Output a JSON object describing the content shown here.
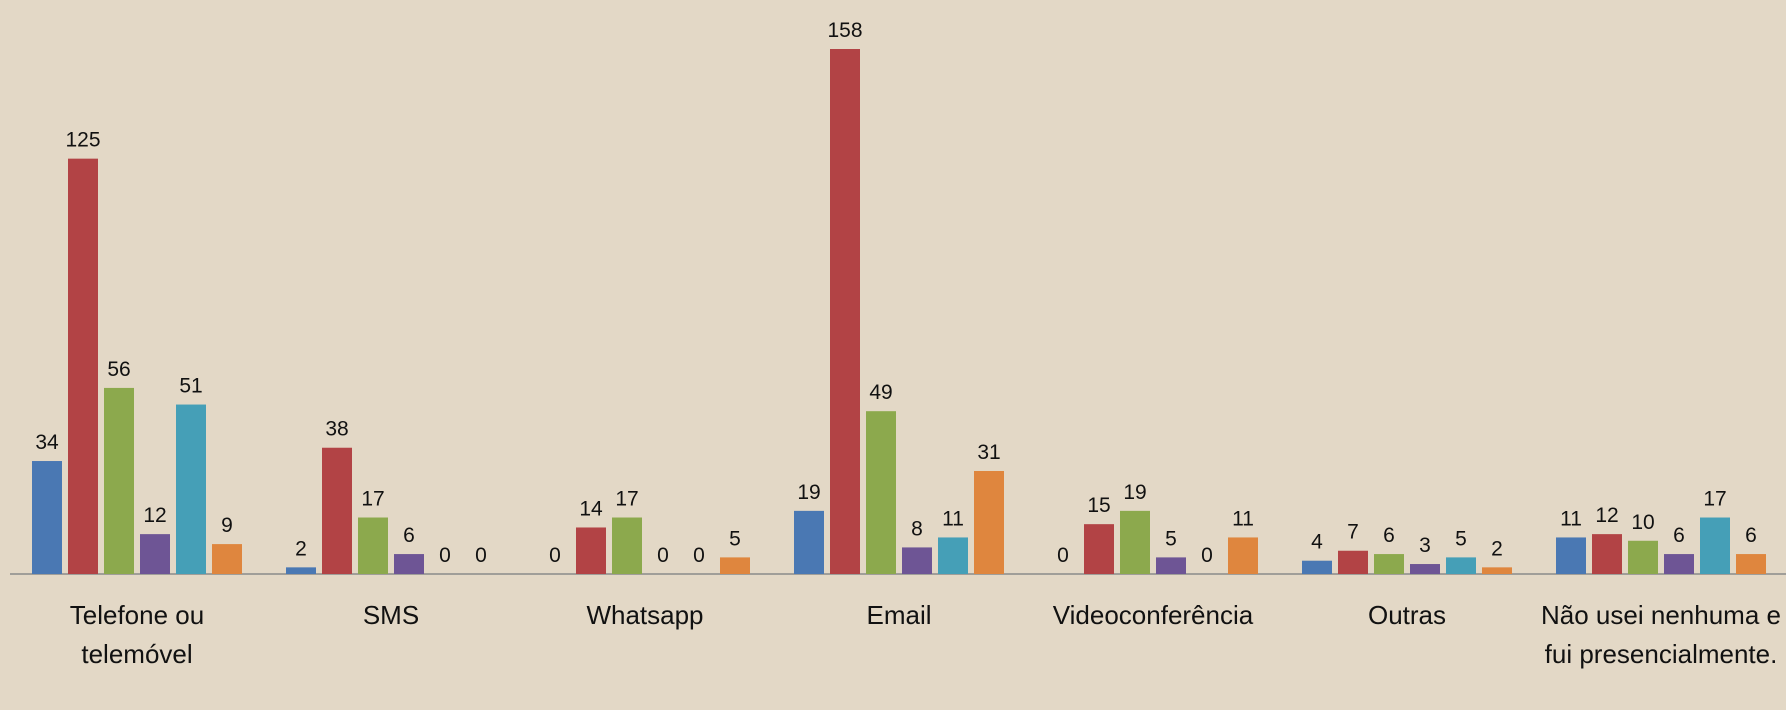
{
  "chart_data": {
    "type": "bar",
    "categories": [
      "Telefone ou telemóvel",
      "SMS",
      "Whatsapp",
      "Email",
      "Videoconferência",
      "Outras",
      "Não usei nenhuma e fui presencialmente."
    ],
    "series": [
      {
        "color": "#4a78b3",
        "values": [
          34,
          2,
          0,
          19,
          0,
          4,
          11
        ]
      },
      {
        "color": "#b24345",
        "values": [
          125,
          38,
          14,
          158,
          15,
          7,
          12
        ]
      },
      {
        "color": "#8ca94d",
        "values": [
          56,
          17,
          17,
          49,
          19,
          6,
          10
        ]
      },
      {
        "color": "#6e5595",
        "values": [
          12,
          6,
          0,
          8,
          5,
          3,
          6
        ]
      },
      {
        "color": "#459fb7",
        "values": [
          51,
          0,
          0,
          11,
          0,
          5,
          17
        ]
      },
      {
        "color": "#df863e",
        "values": [
          9,
          0,
          5,
          31,
          11,
          2,
          6
        ]
      }
    ]
  }
}
